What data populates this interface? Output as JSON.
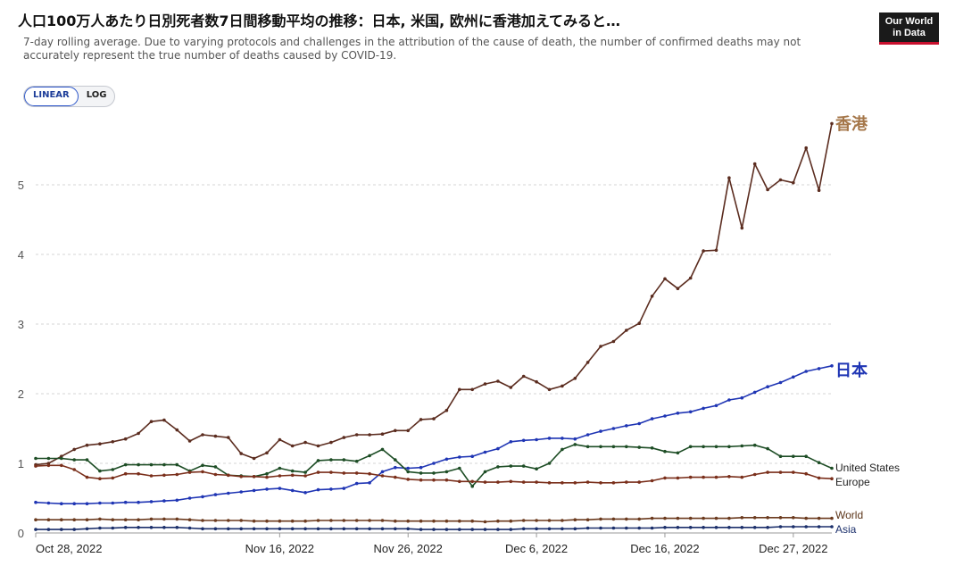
{
  "title": "人口100万人あたり日別死者数7日間移動平均の推移：日本, 米国, 欧州に香港加えてみると…",
  "subtitle": "7-day rolling average. Due to varying protocols and challenges in the attribution of the cause of death, the number of confirmed deaths may not accurately represent the true number of deaths caused by COVID-19.",
  "logo": {
    "line1": "Our World",
    "line2": "in Data"
  },
  "scale_toggle": {
    "linear": "LINEAR",
    "log": "LOG",
    "selected": "LINEAR"
  },
  "chart_data": {
    "type": "line",
    "xlabel": "",
    "ylabel": "",
    "ylim": [
      0,
      6
    ],
    "yticks": [
      "0",
      "1",
      "2",
      "3",
      "4",
      "5"
    ],
    "xticks": [
      {
        "label": "Oct 28, 2022",
        "index": 0
      },
      {
        "label": "Nov 16, 2022",
        "index": 19
      },
      {
        "label": "Nov 26, 2022",
        "index": 29
      },
      {
        "label": "Dec 6, 2022",
        "index": 39
      },
      {
        "label": "Dec 16, 2022",
        "index": 49
      },
      {
        "label": "Dec 27, 2022",
        "index": 59
      }
    ],
    "x_start": "2022-10-28",
    "x_end": "2022-12-28",
    "grid": "horizontal dashed",
    "series": [
      {
        "name": "香港",
        "color": "#5b2c1f",
        "label_color": "#a5774a",
        "label_size": "large",
        "values": [
          0.98,
          1.0,
          1.1,
          1.2,
          1.26,
          1.28,
          1.31,
          1.35,
          1.43,
          1.6,
          1.62,
          1.48,
          1.32,
          1.41,
          1.39,
          1.37,
          1.14,
          1.07,
          1.15,
          1.34,
          1.25,
          1.3,
          1.25,
          1.3,
          1.37,
          1.41,
          1.41,
          1.42,
          1.47,
          1.47,
          1.63,
          1.64,
          1.76,
          2.06,
          2.06,
          2.14,
          2.18,
          2.09,
          2.25,
          2.17,
          2.06,
          2.11,
          2.22,
          2.45,
          2.68,
          2.75,
          2.91,
          3.01,
          3.4,
          3.65,
          3.51,
          3.66,
          4.05,
          4.06,
          5.1,
          4.38,
          5.3,
          4.93,
          5.07,
          5.03,
          5.53,
          4.92,
          5.88
        ]
      },
      {
        "name": "日本",
        "color": "#1f35b4",
        "label_color": "#1f35b4",
        "label_size": "large",
        "values": [
          0.44,
          0.43,
          0.42,
          0.42,
          0.42,
          0.43,
          0.43,
          0.44,
          0.44,
          0.45,
          0.46,
          0.47,
          0.5,
          0.52,
          0.55,
          0.57,
          0.59,
          0.61,
          0.63,
          0.64,
          0.61,
          0.58,
          0.62,
          0.63,
          0.64,
          0.71,
          0.72,
          0.88,
          0.94,
          0.93,
          0.94,
          1.0,
          1.06,
          1.09,
          1.1,
          1.16,
          1.21,
          1.31,
          1.33,
          1.34,
          1.36,
          1.36,
          1.35,
          1.41,
          1.46,
          1.5,
          1.54,
          1.57,
          1.64,
          1.68,
          1.72,
          1.74,
          1.79,
          1.83,
          1.91,
          1.94,
          2.02,
          2.1,
          2.16,
          2.24,
          2.32,
          2.36,
          2.4
        ]
      },
      {
        "name": "United States",
        "color": "#1d4d25",
        "label_color": "#222",
        "label_size": "small",
        "values": [
          1.07,
          1.07,
          1.07,
          1.05,
          1.05,
          0.89,
          0.91,
          0.98,
          0.98,
          0.98,
          0.98,
          0.98,
          0.89,
          0.97,
          0.95,
          0.83,
          0.82,
          0.81,
          0.85,
          0.93,
          0.89,
          0.87,
          1.04,
          1.05,
          1.05,
          1.03,
          1.11,
          1.2,
          1.05,
          0.88,
          0.86,
          0.86,
          0.88,
          0.93,
          0.67,
          0.88,
          0.95,
          0.96,
          0.96,
          0.92,
          1.0,
          1.2,
          1.27,
          1.24,
          1.24,
          1.24,
          1.24,
          1.23,
          1.22,
          1.17,
          1.15,
          1.24,
          1.24,
          1.24,
          1.24,
          1.25,
          1.26,
          1.21,
          1.1,
          1.1,
          1.1,
          1.01,
          0.93
        ]
      },
      {
        "name": "Europe",
        "color": "#7a2f1b",
        "label_color": "#222",
        "label_size": "small",
        "values": [
          0.96,
          0.97,
          0.97,
          0.91,
          0.8,
          0.78,
          0.79,
          0.85,
          0.85,
          0.82,
          0.83,
          0.84,
          0.87,
          0.88,
          0.84,
          0.83,
          0.81,
          0.81,
          0.8,
          0.82,
          0.83,
          0.82,
          0.87,
          0.87,
          0.86,
          0.86,
          0.85,
          0.82,
          0.8,
          0.77,
          0.76,
          0.76,
          0.76,
          0.74,
          0.74,
          0.73,
          0.73,
          0.74,
          0.73,
          0.73,
          0.72,
          0.72,
          0.72,
          0.73,
          0.72,
          0.72,
          0.73,
          0.73,
          0.75,
          0.79,
          0.79,
          0.8,
          0.8,
          0.8,
          0.81,
          0.8,
          0.84,
          0.87,
          0.87,
          0.87,
          0.85,
          0.79,
          0.78
        ]
      },
      {
        "name": "World",
        "color": "#6b3a1e",
        "label_color": "#5b3418",
        "label_size": "small",
        "values": [
          0.19,
          0.19,
          0.19,
          0.19,
          0.19,
          0.2,
          0.19,
          0.19,
          0.19,
          0.2,
          0.2,
          0.2,
          0.19,
          0.18,
          0.18,
          0.18,
          0.18,
          0.17,
          0.17,
          0.17,
          0.17,
          0.17,
          0.18,
          0.18,
          0.18,
          0.18,
          0.18,
          0.18,
          0.17,
          0.17,
          0.17,
          0.17,
          0.17,
          0.17,
          0.17,
          0.16,
          0.17,
          0.17,
          0.18,
          0.18,
          0.18,
          0.18,
          0.19,
          0.19,
          0.2,
          0.2,
          0.2,
          0.2,
          0.21,
          0.21,
          0.21,
          0.21,
          0.21,
          0.21,
          0.21,
          0.22,
          0.22,
          0.22,
          0.22,
          0.22,
          0.21,
          0.21,
          0.21
        ]
      },
      {
        "name": "Asia",
        "color": "#1b2f6b",
        "label_color": "#1b2f6b",
        "label_size": "small",
        "values": [
          0.05,
          0.05,
          0.05,
          0.05,
          0.06,
          0.07,
          0.07,
          0.08,
          0.08,
          0.08,
          0.08,
          0.08,
          0.07,
          0.06,
          0.06,
          0.06,
          0.06,
          0.06,
          0.06,
          0.06,
          0.06,
          0.06,
          0.06,
          0.06,
          0.06,
          0.06,
          0.06,
          0.06,
          0.06,
          0.06,
          0.05,
          0.05,
          0.05,
          0.05,
          0.05,
          0.05,
          0.05,
          0.05,
          0.06,
          0.06,
          0.06,
          0.06,
          0.06,
          0.07,
          0.07,
          0.07,
          0.07,
          0.07,
          0.07,
          0.08,
          0.08,
          0.08,
          0.08,
          0.08,
          0.08,
          0.08,
          0.08,
          0.08,
          0.09,
          0.09,
          0.09,
          0.09,
          0.09
        ]
      }
    ]
  }
}
